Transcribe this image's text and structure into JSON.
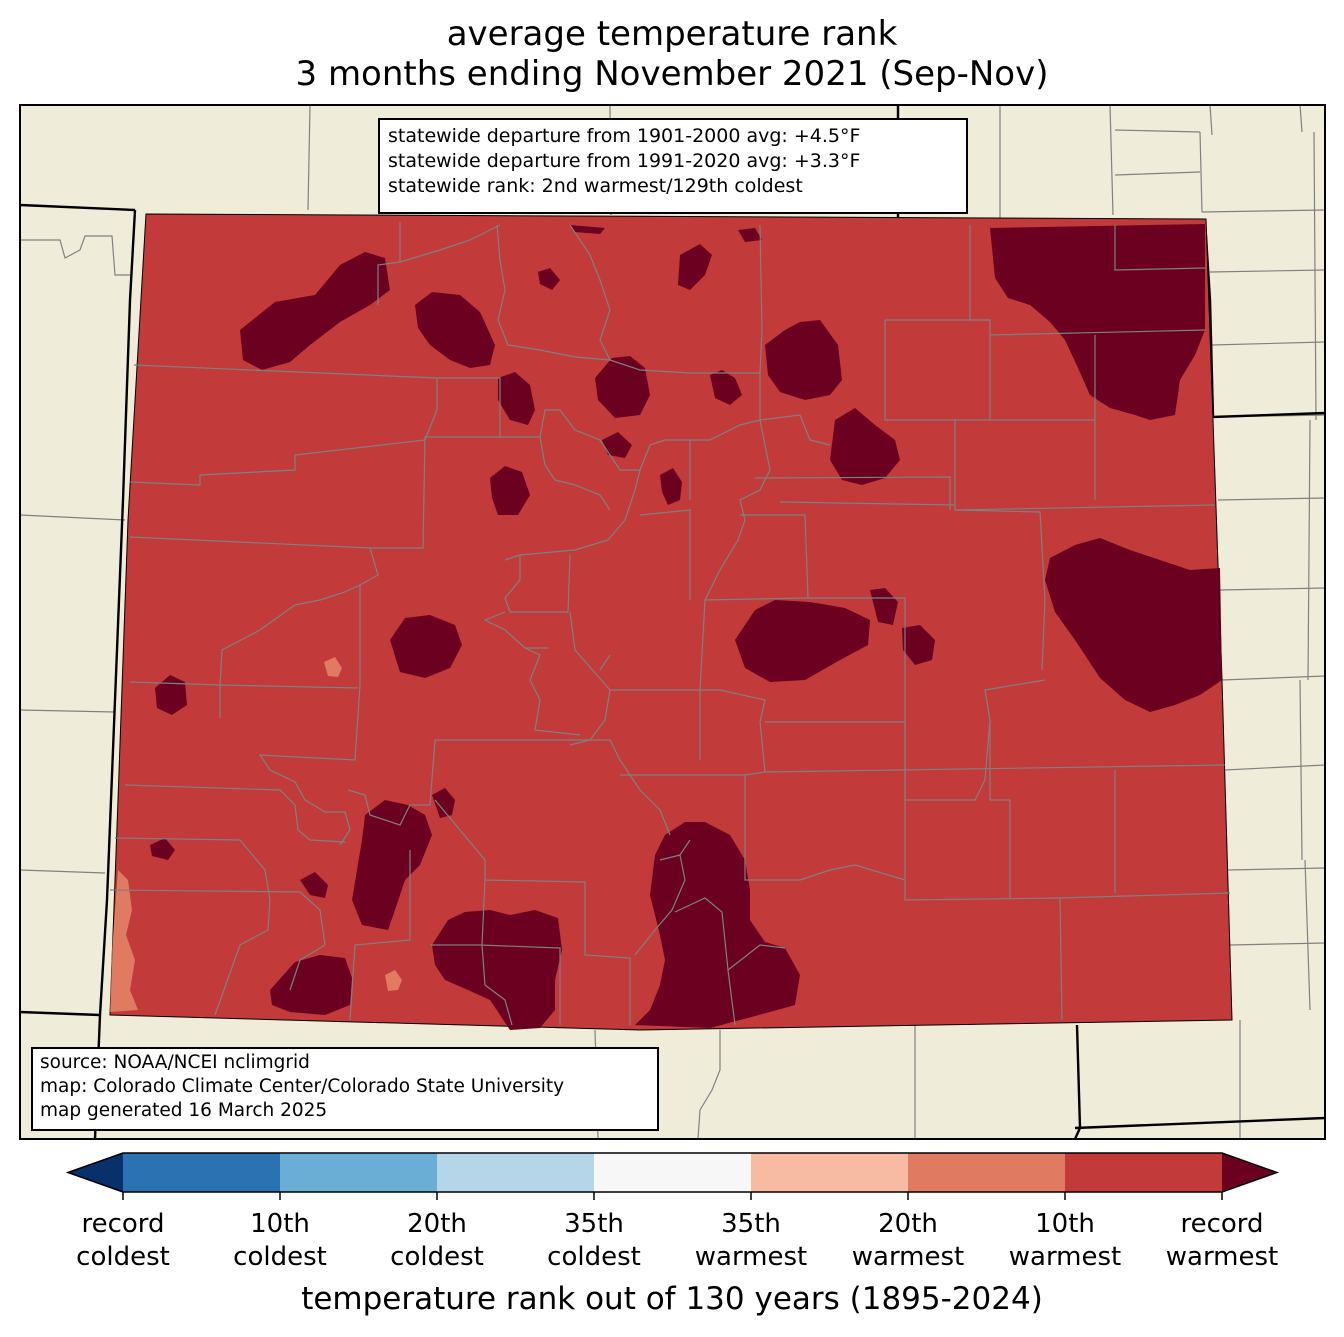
{
  "title": {
    "line1": "average temperature rank",
    "line2": "3 months ending November 2021 (Sep-Nov)"
  },
  "stats": {
    "line1": "statewide departure from 1901-2000 avg: +4.5°F",
    "line2": "statewide departure from 1991-2020 avg: +3.3°F",
    "line3": "statewide rank: 2nd warmest/129th coldest"
  },
  "source": {
    "line1": "source: NOAA/NCEI nclimgrid",
    "line2": "map: Colorado Climate Center/Colorado State University",
    "line3": "map generated 16 March 2025"
  },
  "colorbar": {
    "title": "temperature rank out of 130 years (1895-2024)",
    "ticks": [
      {
        "l1": "record",
        "l2": "coldest"
      },
      {
        "l1": "10th",
        "l2": "coldest"
      },
      {
        "l1": "20th",
        "l2": "coldest"
      },
      {
        "l1": "35th",
        "l2": "coldest"
      },
      {
        "l1": "35th",
        "l2": "warmest"
      },
      {
        "l1": "20th",
        "l2": "warmest"
      },
      {
        "l1": "10th",
        "l2": "warmest"
      },
      {
        "l1": "record",
        "l2": "warmest"
      }
    ],
    "colors": [
      "#08306b",
      "#2b72b3",
      "#6aaed6",
      "#b4d6e8",
      "#f7f7f7",
      "#f7bba3",
      "#e07b62",
      "#c23a3a",
      "#6b0020"
    ]
  },
  "map_colors": {
    "land": "#efedda",
    "top_10_warm": "#c23a3a",
    "top_20_warm": "#e07b62",
    "record_warm": "#6b0020",
    "county_lines": "#808080",
    "state_lines": "#000000"
  }
}
